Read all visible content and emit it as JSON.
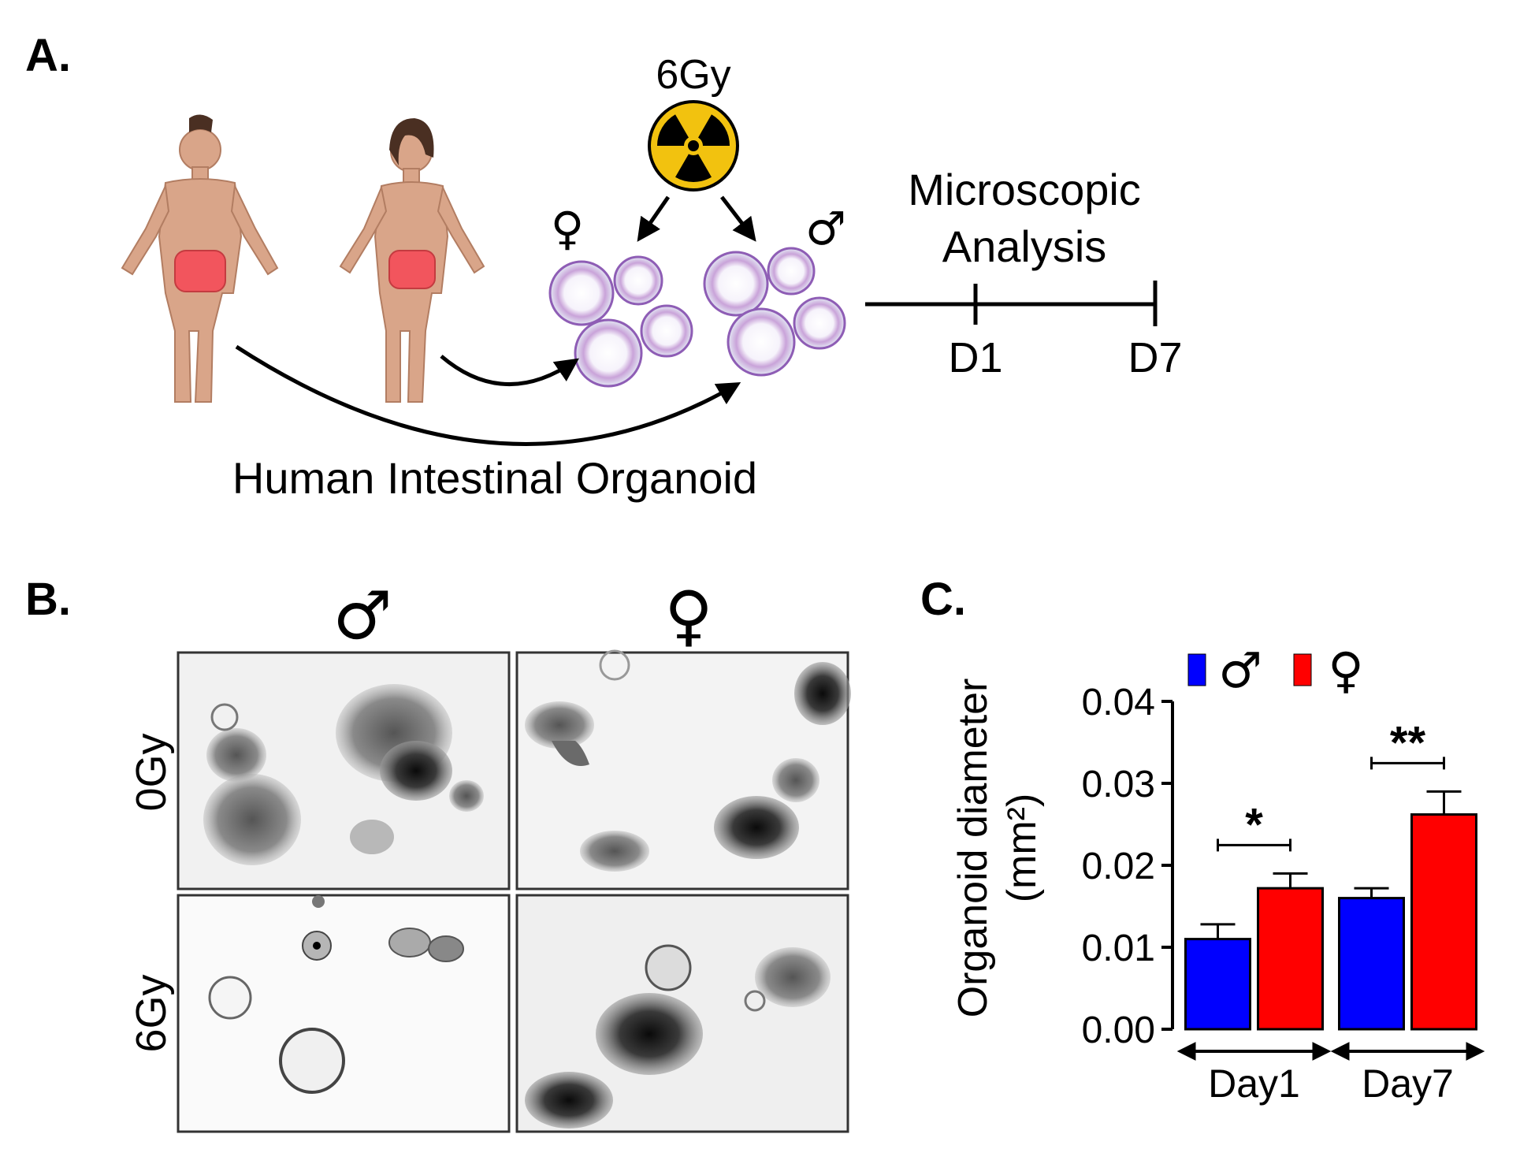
{
  "panel_a": {
    "label": "A.",
    "dose_label": "6Gy",
    "analysis_label_line1": "Microscopic",
    "analysis_label_line2": "Analysis",
    "timeline_ticks": [
      "D1",
      "D7"
    ],
    "caption": "Human Intestinal Organoid",
    "female_symbol": "♀",
    "male_symbol": "♂"
  },
  "panel_b": {
    "label": "B.",
    "columns": [
      "♂",
      "♀"
    ],
    "rows": [
      "0Gy",
      "6Gy"
    ]
  },
  "panel_c": {
    "label": "C.",
    "legend": [
      {
        "symbol": "♂",
        "color": "#0000ff"
      },
      {
        "symbol": "♀",
        "color": "#ff0000"
      }
    ],
    "ylabel_line1": "Organoid diameter",
    "ylabel_line2": "(mm²)",
    "significance": [
      "*",
      "**"
    ]
  },
  "chart_data": {
    "type": "bar",
    "categories": [
      "Day1",
      "Day7"
    ],
    "series": [
      {
        "name": "♂",
        "color": "#0000ff",
        "values": [
          0.011,
          0.016
        ],
        "errors": [
          0.0018,
          0.0012
        ]
      },
      {
        "name": "♀",
        "color": "#ff0000",
        "values": [
          0.0172,
          0.0262
        ],
        "errors": [
          0.0018,
          0.0028
        ]
      }
    ],
    "ylim": [
      0,
      0.04
    ],
    "yticks": [
      "0.00",
      "0.01",
      "0.02",
      "0.03",
      "0.04"
    ],
    "grid": false,
    "legend_position": "top"
  }
}
